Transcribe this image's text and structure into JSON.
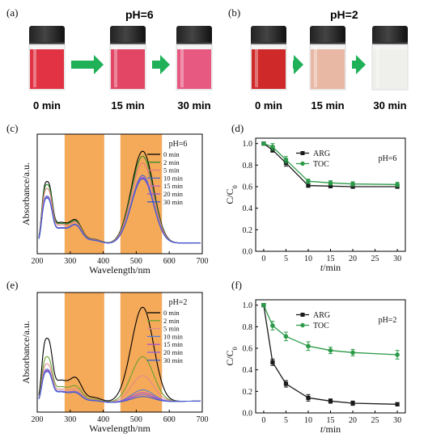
{
  "photos": [
    {
      "panel_label": "(a)",
      "title": "pH=6",
      "times": [
        "0 min",
        "15 min",
        "30 min"
      ],
      "liquid_colors": [
        "#e0283a",
        "#e03c5c",
        "#e6507a"
      ]
    },
    {
      "panel_label": "(b)",
      "title": "pH=2",
      "times": [
        "0 min",
        "15 min",
        "30 min"
      ],
      "liquid_colors": [
        "#cc1e1e",
        "#e7b4a0",
        "#eeeeea"
      ]
    }
  ],
  "colors": {
    "arrow": "#1fb058",
    "highlight": "#f5aa5a",
    "arg": "#1a1a1a",
    "toc": "#2c9a49"
  },
  "chart_data": [
    {
      "panel_label": "(c)",
      "type": "line",
      "title": "",
      "annotation": "pH=6",
      "xlabel": "Wavelength/nm",
      "ylabel": "Absorbance/a.u.",
      "xlim": [
        200,
        700
      ],
      "xticks": [
        200,
        300,
        400,
        500,
        600,
        700
      ],
      "highlight_ranges": [
        [
          283,
          403
        ],
        [
          452,
          578
        ]
      ],
      "legend": [
        "0 min",
        "2 min",
        "5 min",
        "10 min",
        "15 min",
        "20 min",
        "30 min"
      ],
      "series_colors": [
        "#000000",
        "#2a8a2a",
        "#e07a7a",
        "#4a6ac8",
        "#c060c8",
        "#8a5ad8",
        "#3a5ad0"
      ],
      "line_styles": [
        "solid",
        "solid",
        "solid",
        "solid",
        "solid",
        "solid",
        "solid"
      ]
    },
    {
      "panel_label": "(d)",
      "type": "line",
      "title": "",
      "annotation": "pH=6",
      "xlabel": "t/min",
      "ylabel": "C/C0",
      "xlim": [
        -1.8,
        31.8
      ],
      "ylim": [
        0,
        1.05
      ],
      "xticks": [
        0,
        5,
        10,
        15,
        20,
        25,
        30
      ],
      "yticks": [
        0,
        0.2,
        0.4,
        0.6,
        0.8,
        1.0
      ],
      "ytick_labels": [
        "0.0",
        "0.2",
        "0.4",
        "0.6",
        "0.8",
        "1.0"
      ],
      "x": [
        0,
        2,
        5,
        10,
        15,
        20,
        30
      ],
      "series": [
        {
          "name": "ARG",
          "values": [
            1.0,
            0.94,
            0.82,
            0.61,
            0.605,
            0.6,
            0.6
          ],
          "errors": [
            0.01,
            0.02,
            0.03,
            0.015,
            0.015,
            0.015,
            0.015
          ],
          "marker": "square",
          "color": "#1a1a1a"
        },
        {
          "name": "TOC",
          "values": [
            1.0,
            0.97,
            0.85,
            0.65,
            0.635,
            0.625,
            0.62
          ],
          "errors": [
            0.01,
            0.03,
            0.03,
            0.02,
            0.02,
            0.02,
            0.02
          ],
          "marker": "circle",
          "color": "#2c9a49"
        }
      ]
    },
    {
      "panel_label": "(e)",
      "type": "line",
      "title": "",
      "annotation": "pH=2",
      "xlabel": "Wavelength/nm",
      "ylabel": "Absorbance/a.u.",
      "xlim": [
        200,
        700
      ],
      "xticks": [
        200,
        300,
        400,
        500,
        600,
        700
      ],
      "highlight_ranges": [
        [
          283,
          403
        ],
        [
          452,
          578
        ]
      ],
      "legend": [
        "0 min",
        "2 min",
        "5 min",
        "10 min",
        "15 min",
        "20 min",
        "30 min"
      ],
      "series_colors": [
        "#000000",
        "#6aa030",
        "#e08a8a",
        "#5a7ad0",
        "#b050c8",
        "#9060d8",
        "#3a5ad0"
      ],
      "line_styles": [
        "solid",
        "solid",
        "solid",
        "solid",
        "solid",
        "solid",
        "solid"
      ]
    },
    {
      "panel_label": "(f)",
      "type": "line",
      "title": "",
      "annotation": "pH=2",
      "xlabel": "t/min",
      "ylabel": "C/C0",
      "xlim": [
        -1.8,
        31.8
      ],
      "ylim": [
        0,
        1.05
      ],
      "xticks": [
        0,
        5,
        10,
        15,
        20,
        25,
        30
      ],
      "yticks": [
        0,
        0.2,
        0.4,
        0.6,
        0.8,
        1.0
      ],
      "ytick_labels": [
        "0.0",
        "0.2",
        "0.4",
        "0.6",
        "0.8",
        "1.0"
      ],
      "x": [
        0,
        2,
        5,
        10,
        15,
        20,
        30
      ],
      "series": [
        {
          "name": "ARG",
          "values": [
            1.0,
            0.47,
            0.27,
            0.14,
            0.11,
            0.09,
            0.08
          ],
          "errors": [
            0.01,
            0.03,
            0.03,
            0.03,
            0.02,
            0.02,
            0.015
          ],
          "marker": "square",
          "color": "#1a1a1a"
        },
        {
          "name": "TOC",
          "values": [
            1.0,
            0.81,
            0.71,
            0.62,
            0.58,
            0.56,
            0.54
          ],
          "errors": [
            0.01,
            0.04,
            0.04,
            0.04,
            0.03,
            0.03,
            0.04
          ],
          "marker": "circle",
          "color": "#2c9a49"
        }
      ]
    }
  ]
}
